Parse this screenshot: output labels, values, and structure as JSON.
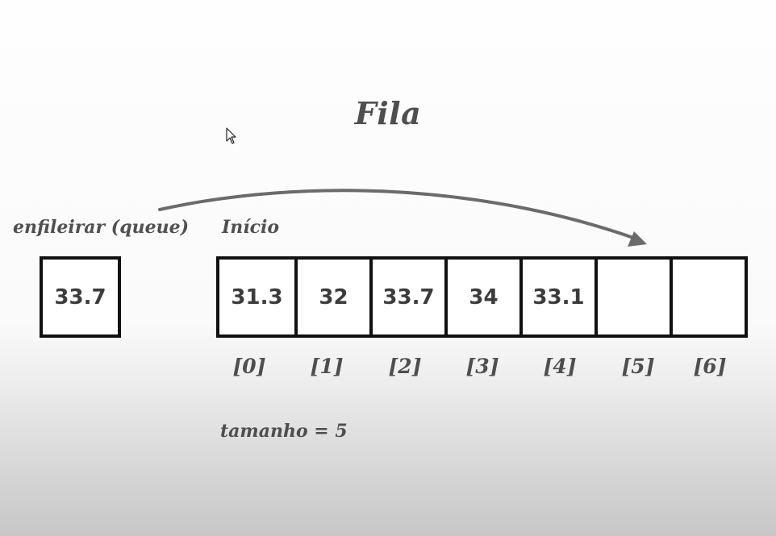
{
  "title": "Fila",
  "enqueue_label": "enfileirar (queue)",
  "start_label": "Início",
  "pending_value": "33.7",
  "slots": [
    {
      "value": "31.3",
      "index": "[0]"
    },
    {
      "value": "32",
      "index": "[1]"
    },
    {
      "value": "33.7",
      "index": "[2]"
    },
    {
      "value": "34",
      "index": "[3]"
    },
    {
      "value": "33.1",
      "index": "[4]"
    },
    {
      "value": "",
      "index": "[5]"
    },
    {
      "value": "",
      "index": "[6]"
    }
  ],
  "size_label": "tamanho = 5",
  "colors": {
    "arrow": "#6b6b6b",
    "border": "#111111",
    "text": "#4f4f4f"
  }
}
